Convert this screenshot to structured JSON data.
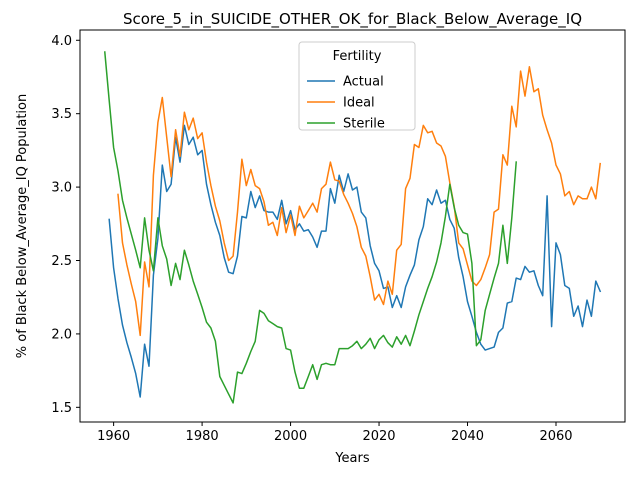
{
  "chart_data": {
    "type": "line",
    "title": "Score_5_in_SUICIDE_OTHER_OK_for_Black_Below_Average_IQ",
    "xlabel": "Years",
    "ylabel": "% of Black Below_Average_IQ Population",
    "xlim": [
      1952.4,
      2075.6
    ],
    "ylim": [
      1.4,
      4.07
    ],
    "x_ticks": [
      1960,
      1980,
      2000,
      2020,
      2040,
      2060
    ],
    "y_ticks": [
      1.5,
      2.0,
      2.5,
      3.0,
      3.5,
      4.0
    ],
    "grid": false,
    "legend": {
      "title": "Fertility",
      "position": "upper-center"
    },
    "series": [
      {
        "name": "Actual",
        "color": "#1f77b4",
        "x": [
          1959,
          1960,
          1961,
          1962,
          1963,
          1964,
          1965,
          1966,
          1967,
          1968,
          1969,
          1970,
          1971,
          1972,
          1973,
          1974,
          1975,
          1976,
          1977,
          1978,
          1979,
          1980,
          1981,
          1982,
          1983,
          1984,
          1985,
          1986,
          1987,
          1988,
          1989,
          1990,
          1991,
          1992,
          1993,
          1994,
          1995,
          1996,
          1997,
          1998,
          1999,
          2000,
          2001,
          2002,
          2003,
          2004,
          2005,
          2006,
          2007,
          2008,
          2009,
          2010,
          2011,
          2012,
          2013,
          2014,
          2015,
          2016,
          2017,
          2018,
          2019,
          2020,
          2021,
          2022,
          2023,
          2024,
          2025,
          2026,
          2027,
          2028,
          2029,
          2030,
          2031,
          2032,
          2033,
          2034,
          2035,
          2036,
          2037,
          2038,
          2039,
          2040,
          2041,
          2042,
          2043,
          2044,
          2045,
          2046,
          2047,
          2048,
          2049,
          2050,
          2051,
          2052,
          2053,
          2054,
          2055,
          2056,
          2057,
          2058,
          2059,
          2060,
          2061,
          2062,
          2063,
          2064,
          2065,
          2066,
          2067,
          2068,
          2069,
          2070
        ],
        "values": [
          2.78,
          2.45,
          2.24,
          2.06,
          1.94,
          1.84,
          1.73,
          1.57,
          1.93,
          1.78,
          2.4,
          2.65,
          3.15,
          2.97,
          3.02,
          3.34,
          3.17,
          3.42,
          3.29,
          3.34,
          3.22,
          3.25,
          3.02,
          2.88,
          2.76,
          2.67,
          2.52,
          2.42,
          2.41,
          2.53,
          2.8,
          2.79,
          2.97,
          2.86,
          2.94,
          2.84,
          2.83,
          2.83,
          2.78,
          2.91,
          2.75,
          2.84,
          2.71,
          2.75,
          2.7,
          2.71,
          2.66,
          2.59,
          2.7,
          2.7,
          2.99,
          2.89,
          3.08,
          2.97,
          3.09,
          2.98,
          3.0,
          2.83,
          2.79,
          2.6,
          2.48,
          2.43,
          2.31,
          2.32,
          2.18,
          2.26,
          2.18,
          2.32,
          2.4,
          2.47,
          2.64,
          2.73,
          2.92,
          2.88,
          2.98,
          2.89,
          2.91,
          2.78,
          2.72,
          2.52,
          2.39,
          2.22,
          2.12,
          2.01,
          1.93,
          1.89,
          1.9,
          1.91,
          2.01,
          2.04,
          2.21,
          2.22,
          2.38,
          2.37,
          2.46,
          2.42,
          2.43,
          2.33,
          2.26,
          2.94,
          2.05,
          2.62,
          2.54,
          2.33,
          2.31,
          2.12,
          2.19,
          2.05,
          2.23,
          2.12,
          2.36,
          2.29
        ]
      },
      {
        "name": "Ideal",
        "color": "#ff7f0e",
        "x": [
          1961,
          1962,
          1963,
          1964,
          1965,
          1966,
          1967,
          1968,
          1969,
          1970,
          1971,
          1972,
          1973,
          1974,
          1975,
          1976,
          1977,
          1978,
          1979,
          1980,
          1981,
          1982,
          1983,
          1984,
          1985,
          1986,
          1987,
          1988,
          1989,
          1990,
          1991,
          1992,
          1993,
          1994,
          1995,
          1996,
          1997,
          1998,
          1999,
          2000,
          2001,
          2002,
          2003,
          2004,
          2005,
          2006,
          2007,
          2008,
          2009,
          2010,
          2011,
          2012,
          2013,
          2014,
          2015,
          2016,
          2017,
          2018,
          2019,
          2020,
          2021,
          2022,
          2023,
          2024,
          2025,
          2026,
          2027,
          2028,
          2029,
          2030,
          2031,
          2032,
          2033,
          2034,
          2035,
          2036,
          2037,
          2038,
          2039,
          2040,
          2041,
          2042,
          2043,
          2044,
          2045,
          2046,
          2047,
          2048,
          2049,
          2050,
          2051,
          2052,
          2053,
          2054,
          2055,
          2056,
          2057,
          2058,
          2059,
          2060,
          2061,
          2062,
          2063,
          2064,
          2065,
          2066,
          2067,
          2068,
          2069,
          2070
        ],
        "values": [
          2.95,
          2.62,
          2.47,
          2.34,
          2.22,
          1.99,
          2.49,
          2.32,
          3.08,
          3.44,
          3.61,
          3.34,
          3.07,
          3.39,
          3.21,
          3.51,
          3.39,
          3.47,
          3.33,
          3.37,
          3.17,
          3.01,
          2.87,
          2.77,
          2.62,
          2.5,
          2.53,
          2.83,
          3.19,
          3.01,
          3.12,
          3.01,
          2.99,
          2.9,
          2.74,
          2.76,
          2.67,
          2.86,
          2.69,
          2.81,
          2.67,
          2.87,
          2.79,
          2.84,
          2.89,
          2.83,
          2.99,
          3.02,
          3.17,
          3.05,
          3.04,
          2.95,
          2.89,
          2.82,
          2.73,
          2.59,
          2.53,
          2.39,
          2.23,
          2.27,
          2.2,
          2.36,
          2.27,
          2.57,
          2.61,
          2.99,
          3.06,
          3.29,
          3.27,
          3.42,
          3.37,
          3.38,
          3.3,
          3.28,
          3.21,
          3.03,
          2.87,
          2.62,
          2.58,
          2.47,
          2.36,
          2.33,
          2.37,
          2.45,
          2.54,
          2.83,
          2.85,
          3.22,
          3.15,
          3.55,
          3.41,
          3.79,
          3.62,
          3.82,
          3.65,
          3.67,
          3.49,
          3.39,
          3.3,
          3.15,
          3.09,
          2.94,
          2.97,
          2.88,
          2.94,
          2.92,
          2.92,
          3.0,
          2.92,
          3.16
        ]
      },
      {
        "name": "Sterile",
        "color": "#2ca02c",
        "x": [
          1958,
          1959,
          1960,
          1961,
          1962,
          1963,
          1964,
          1965,
          1966,
          1967,
          1968,
          1969,
          1970,
          1971,
          1972,
          1973,
          1974,
          1975,
          1976,
          1977,
          1978,
          1979,
          1980,
          1981,
          1982,
          1983,
          1984,
          1985,
          1986,
          1987,
          1988,
          1989,
          1990,
          1991,
          1992,
          1993,
          1994,
          1995,
          1996,
          1997,
          1998,
          1999,
          2000,
          2001,
          2002,
          2003,
          2004,
          2005,
          2006,
          2007,
          2008,
          2009,
          2010,
          2011,
          2012,
          2013,
          2014,
          2015,
          2016,
          2017,
          2018,
          2019,
          2020,
          2021,
          2022,
          2023,
          2024,
          2025,
          2026,
          2027,
          2028,
          2029,
          2030,
          2031,
          2032,
          2033,
          2034,
          2035,
          2036,
          2037,
          2038,
          2039,
          2040,
          2041,
          2042,
          2043,
          2044,
          2045,
          2046,
          2047,
          2048,
          2049,
          2050,
          2051
        ],
        "values": [
          3.92,
          3.59,
          3.27,
          3.11,
          2.91,
          2.79,
          2.68,
          2.57,
          2.45,
          2.79,
          2.57,
          2.43,
          2.79,
          2.6,
          2.51,
          2.33,
          2.48,
          2.37,
          2.57,
          2.47,
          2.36,
          2.27,
          2.18,
          2.08,
          2.04,
          1.95,
          1.71,
          1.65,
          1.59,
          1.53,
          1.74,
          1.73,
          1.8,
          1.88,
          1.95,
          2.16,
          2.14,
          2.09,
          2.07,
          2.05,
          2.04,
          1.9,
          1.89,
          1.74,
          1.63,
          1.63,
          1.71,
          1.79,
          1.69,
          1.79,
          1.8,
          1.79,
          1.79,
          1.9,
          1.9,
          1.9,
          1.92,
          1.95,
          1.9,
          1.93,
          1.97,
          1.9,
          1.96,
          1.99,
          1.94,
          1.91,
          1.98,
          1.93,
          1.99,
          1.92,
          2.02,
          2.13,
          2.22,
          2.31,
          2.39,
          2.49,
          2.62,
          2.8,
          3.02,
          2.86,
          2.74,
          2.69,
          2.68,
          2.48,
          1.92,
          1.96,
          2.16,
          2.27,
          2.38,
          2.48,
          2.74,
          2.48,
          2.79,
          3.17
        ]
      }
    ]
  }
}
